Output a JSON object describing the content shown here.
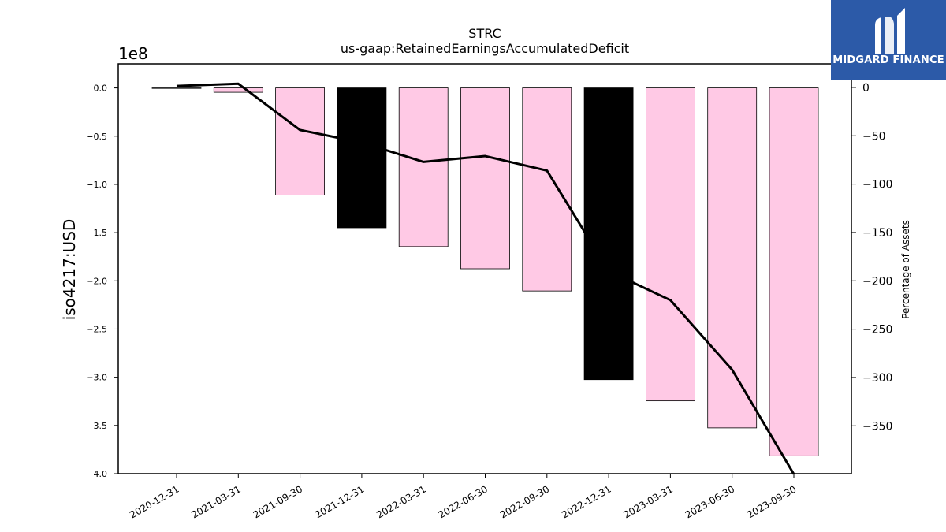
{
  "chart_data": {
    "type": "bar",
    "title": "STRC",
    "subtitle": "us-gaap:RetainedEarningsAccumulatedDeficit",
    "ylabel": "iso4217:USD",
    "y_offset_label": "1e8",
    "y2label": "Percentage of Assets",
    "categories": [
      "2020-12-31",
      "2021-03-31",
      "2021-09-30",
      "2021-12-31",
      "2022-03-31",
      "2022-06-30",
      "2022-09-30",
      "2022-12-31",
      "2023-03-31",
      "2023-06-30",
      "2023-09-30"
    ],
    "series": [
      {
        "values": [
          -0.005,
          -0.045,
          -1.11,
          -1.45,
          -1.645,
          -1.875,
          -2.105,
          -3.025,
          -3.245,
          -3.525,
          -3.815
        ],
        "colors": [
          "#ffc9e5",
          "#ffc9e5",
          "#ffc9e5",
          "#000000",
          "#ffc9e5",
          "#ffc9e5",
          "#ffc9e5",
          "#000000",
          "#ffc9e5",
          "#ffc9e5",
          "#ffc9e5"
        ]
      },
      {
        "axis": "right",
        "type": "line",
        "values": [
          1.5,
          3.8,
          -44,
          -57,
          -77,
          -71,
          -86,
          -190,
          -220,
          -292,
          -400
        ]
      }
    ],
    "ylim": [
      -4.0,
      0.25
    ],
    "yticks": [
      "0.0",
      "-0.5",
      "-1.0",
      "-1.5",
      "-2.0",
      "-2.5",
      "-3.0",
      "-3.5",
      "-4.0"
    ],
    "y2lim": [
      -399.5,
      24.4
    ],
    "y2ticks": [
      "0",
      "-50",
      "-100",
      "-150",
      "-200",
      "-250",
      "-300",
      "-350"
    ],
    "grid": false,
    "colors": {
      "bar_default": "#ffc9e5",
      "bar_highlight": "#000000",
      "line": "#000000"
    }
  },
  "branding": {
    "name": "MIDGARD FINANCE",
    "bg": "#2c5aa8"
  }
}
